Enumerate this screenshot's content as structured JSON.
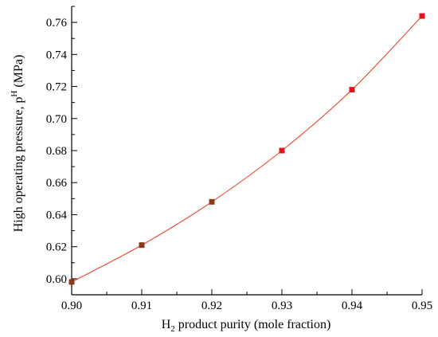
{
  "chart_data": {
    "type": "line",
    "title": "",
    "xlabel_main": "H",
    "xlabel_sub": "2",
    "xlabel_rest": " product purity (mole fraction)",
    "ylabel_main": "High operating pressure, p",
    "ylabel_sup": "H",
    "ylabel_rest": " (MPa)",
    "xlim": [
      0.9,
      0.95
    ],
    "ylim": [
      0.59,
      0.77
    ],
    "xticks": [
      "0.90",
      "0.91",
      "0.92",
      "0.93",
      "0.94",
      "0.95"
    ],
    "yticks": [
      "0.60",
      "0.62",
      "0.64",
      "0.66",
      "0.68",
      "0.70",
      "0.72",
      "0.74",
      "0.76"
    ],
    "series": [
      {
        "x": [
          0.9,
          0.91,
          0.92,
          0.93,
          0.94,
          0.95
        ],
        "y": [
          0.598,
          0.621,
          0.648,
          0.68,
          0.718,
          0.764
        ]
      }
    ],
    "grid": false,
    "line_color": "#e8452c",
    "marker_colors": [
      "#8b3a1a",
      "#8b3a1a",
      "#8b3a1a",
      "#e8141c",
      "#e8141c",
      "#e8141c"
    ]
  }
}
